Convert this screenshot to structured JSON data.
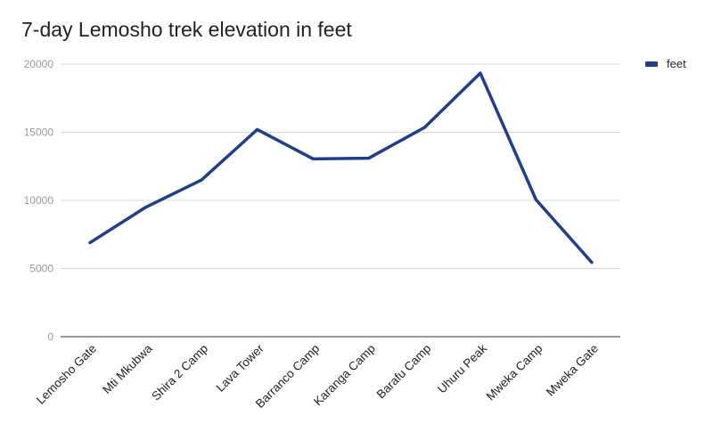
{
  "chart_data": {
    "type": "line",
    "title": "7-day Lemosho trek elevation in feet",
    "xlabel": "",
    "ylabel": "",
    "categories": [
      "Lemosho Gate",
      "Mti Mkubwa",
      "Shira 2 Camp",
      "Lava Tower",
      "Barranco Camp",
      "Karanga Camp",
      "Barafu Camp",
      "Uhuru Peak",
      "Mweka Camp",
      "Mweka Gate"
    ],
    "series": [
      {
        "name": "feet",
        "values": [
          6900,
          9500,
          11500,
          15200,
          13050,
          13100,
          15350,
          19340,
          10050,
          5450
        ],
        "color": "#1f3f8c"
      }
    ],
    "ylim": [
      0,
      20000
    ],
    "yticks": [
      "0",
      "5000",
      "10000",
      "15000",
      "20000"
    ],
    "grid": true,
    "legend_position": "right",
    "colors": {
      "line": "#1f3f8c",
      "grid": "#d9d9d9",
      "axis": "#333333"
    }
  }
}
